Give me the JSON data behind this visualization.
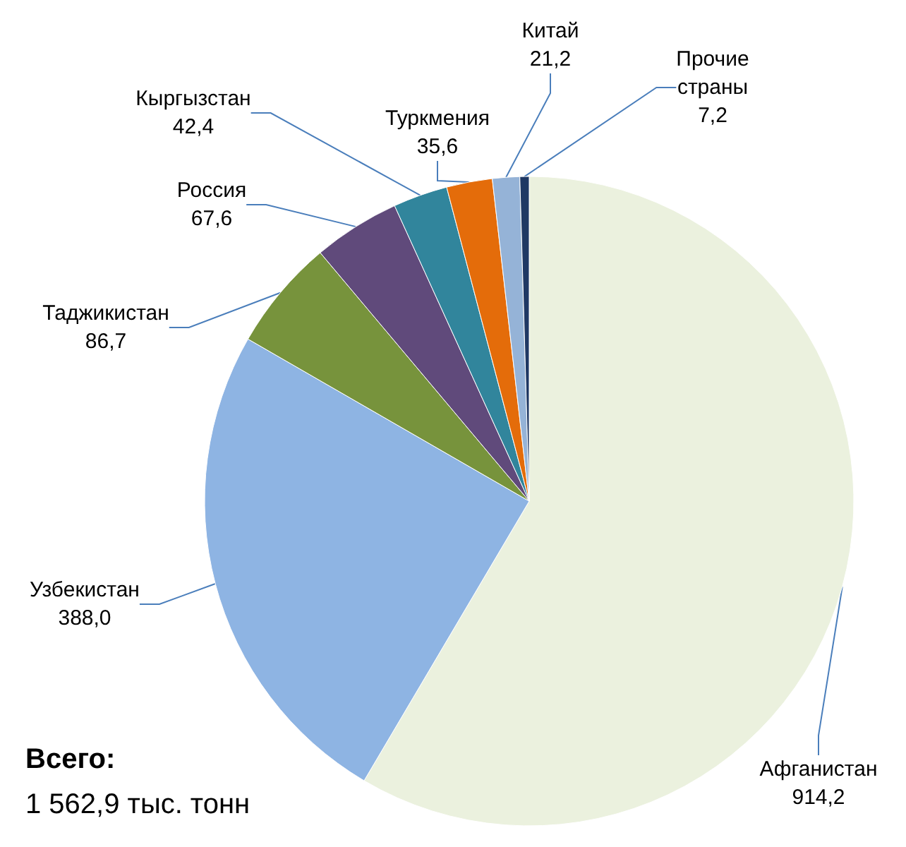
{
  "chart_data": {
    "type": "pie",
    "categories": [
      "Афганистан",
      "Узбекистан",
      "Таджикистан",
      "Россия",
      "Кыргызстан",
      "Туркмения",
      "Китай",
      "Прочие страны"
    ],
    "values": [
      914.2,
      388.0,
      86.7,
      67.6,
      42.4,
      35.6,
      21.2,
      7.2
    ],
    "value_labels": [
      "914,2",
      "388,0",
      "86,7",
      "67,6",
      "42,4",
      "35,6",
      "21,2",
      "7,2"
    ],
    "colors": [
      "#ebf1de",
      "#8eb4e3",
      "#77933c",
      "#604a7b",
      "#31859c",
      "#e46c0a",
      "#95b3d7",
      "#1f3864"
    ],
    "annotations": [
      "Всего:",
      "1 562,9 тыс. тонн"
    ]
  }
}
